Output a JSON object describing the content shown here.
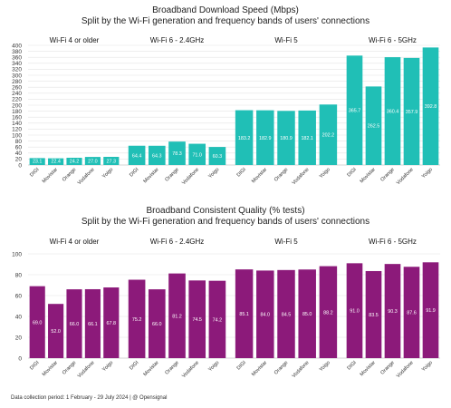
{
  "footer": "Data collection period: 1 February - 29 July 2024 | @ Opensignal",
  "chart_data": [
    {
      "type": "bar",
      "title": "Broadband Download Speed (Mbps)",
      "subtitle": "Split by the Wi-Fi generation and frequency bands of users' connections",
      "ylim": [
        0,
        400
      ],
      "yticks": [
        0,
        20,
        40,
        60,
        80,
        100,
        120,
        140,
        160,
        180,
        200,
        220,
        240,
        260,
        280,
        300,
        320,
        340,
        360,
        380,
        400
      ],
      "grid": true,
      "color": "#20bfb6",
      "categories": [
        "DIGI",
        "Movistar",
        "Orange",
        "Vodafone",
        "Yoigo"
      ],
      "panels": [
        {
          "name": "Wi-Fi 4 or older",
          "values": [
            23.1,
            22.4,
            24.2,
            27.0,
            27.3
          ],
          "labels": [
            "23.1",
            "22.4",
            "24.2",
            "27.0",
            "27.3"
          ]
        },
        {
          "name": "Wi-Fi 6 - 2.4GHz",
          "values": [
            64.4,
            64.3,
            78.3,
            71.0,
            60.3
          ],
          "labels": [
            "64.4",
            "64.3",
            "78.3",
            "71.0",
            "60.3"
          ]
        },
        {
          "name": "Wi-Fi 5",
          "values": [
            183.2,
            182.9,
            180.9,
            182.1,
            202.2
          ],
          "labels": [
            "183.2",
            "182.9",
            "180.9",
            "182.1",
            "202.2"
          ]
        },
        {
          "name": "Wi-Fi 6 - 5GHz",
          "values": [
            365.7,
            262.5,
            360.4,
            357.9,
            392.8
          ],
          "labels": [
            "365.7",
            "262.5",
            "360.4",
            "357.9",
            "392.8"
          ]
        }
      ]
    },
    {
      "type": "bar",
      "title": "Broadband Consistent Quality (% tests)",
      "subtitle": "Split by the Wi-Fi generation and frequency bands of users' connections",
      "ylim": [
        0,
        100
      ],
      "yticks": [
        0,
        20,
        40,
        60,
        80,
        100
      ],
      "grid": true,
      "color": "#8c1a7a",
      "categories": [
        "DIGI",
        "Movistar",
        "Orange",
        "Vodafone",
        "Yoigo"
      ],
      "panels": [
        {
          "name": "Wi-Fi 4 or older",
          "values": [
            69.0,
            52.0,
            66.0,
            66.1,
            67.8
          ],
          "labels": [
            "69.0",
            "52.0",
            "66.0",
            "66.1",
            "67.8"
          ]
        },
        {
          "name": "Wi-Fi 6 - 2.4GHz",
          "values": [
            75.2,
            66.0,
            81.2,
            74.5,
            74.2
          ],
          "labels": [
            "75.2",
            "66.0",
            "81.2",
            "74.5",
            "74.2"
          ]
        },
        {
          "name": "Wi-Fi 5",
          "values": [
            85.1,
            84.0,
            84.5,
            85.0,
            88.2
          ],
          "labels": [
            "85.1",
            "84.0",
            "84.5",
            "85.0",
            "88.2"
          ]
        },
        {
          "name": "Wi-Fi 6 - 5GHz",
          "values": [
            91.0,
            83.5,
            90.3,
            87.6,
            91.9
          ],
          "labels": [
            "91.0",
            "83.5",
            "90.3",
            "87.6",
            "91.9"
          ]
        }
      ]
    }
  ]
}
